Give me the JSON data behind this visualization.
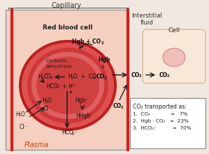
{
  "title": "Capillary",
  "capillary_bg": "#f5cfc0",
  "rbc_outer_color": "#c83030",
  "rbc_ring_color": "#e06060",
  "rbc_inner_color": "#d04040",
  "plasma_label": "Plasma",
  "rbc_label": "Red blood cell",
  "interstitial_label": "Interstitial\nfluid",
  "cell_label": "Cell",
  "cell_bg": "#f8e8d8",
  "cell_nucleus_color": "#e8a0a0",
  "overall_bg": "#f0e8e0",
  "legend_lines": [
    "CO₂ transported as:",
    "1.  CO₂             =   7%",
    "2.  Hgb · CO₂   =  23%",
    "3.  HCO₃⁻          =  70%"
  ]
}
